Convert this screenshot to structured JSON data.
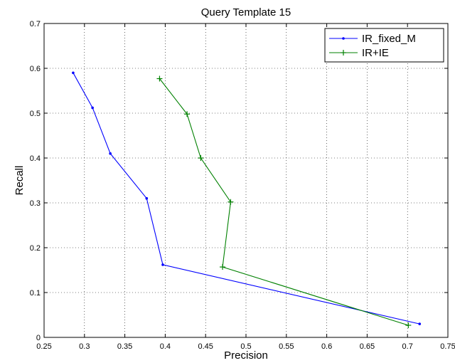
{
  "chart_data": {
    "type": "line",
    "title": "Query Template 15",
    "xlabel": "Precision",
    "ylabel": "Recall",
    "xlim": [
      0.25,
      0.75
    ],
    "ylim": [
      0,
      0.7
    ],
    "xticks": [
      "0.25",
      "0.3",
      "0.35",
      "0.4",
      "0.45",
      "0.5",
      "0.55",
      "0.6",
      "0.65",
      "0.7",
      "0.75"
    ],
    "yticks": [
      "0",
      "0.1",
      "0.2",
      "0.3",
      "0.4",
      "0.5",
      "0.6",
      "0.7"
    ],
    "grid": true,
    "legend_position": "top-right",
    "series": [
      {
        "name": "IR_fixed_M",
        "color": "#0000ff",
        "marker": "dot",
        "x": [
          0.286,
          0.31,
          0.332,
          0.377,
          0.397,
          0.715
        ],
        "y": [
          0.59,
          0.512,
          0.41,
          0.31,
          0.162,
          0.03
        ]
      },
      {
        "name": "IR+IE",
        "color": "#008000",
        "marker": "plus",
        "x": [
          0.393,
          0.427,
          0.444,
          0.481,
          0.471,
          0.701
        ],
        "y": [
          0.577,
          0.498,
          0.4,
          0.302,
          0.157,
          0.027
        ]
      }
    ]
  }
}
